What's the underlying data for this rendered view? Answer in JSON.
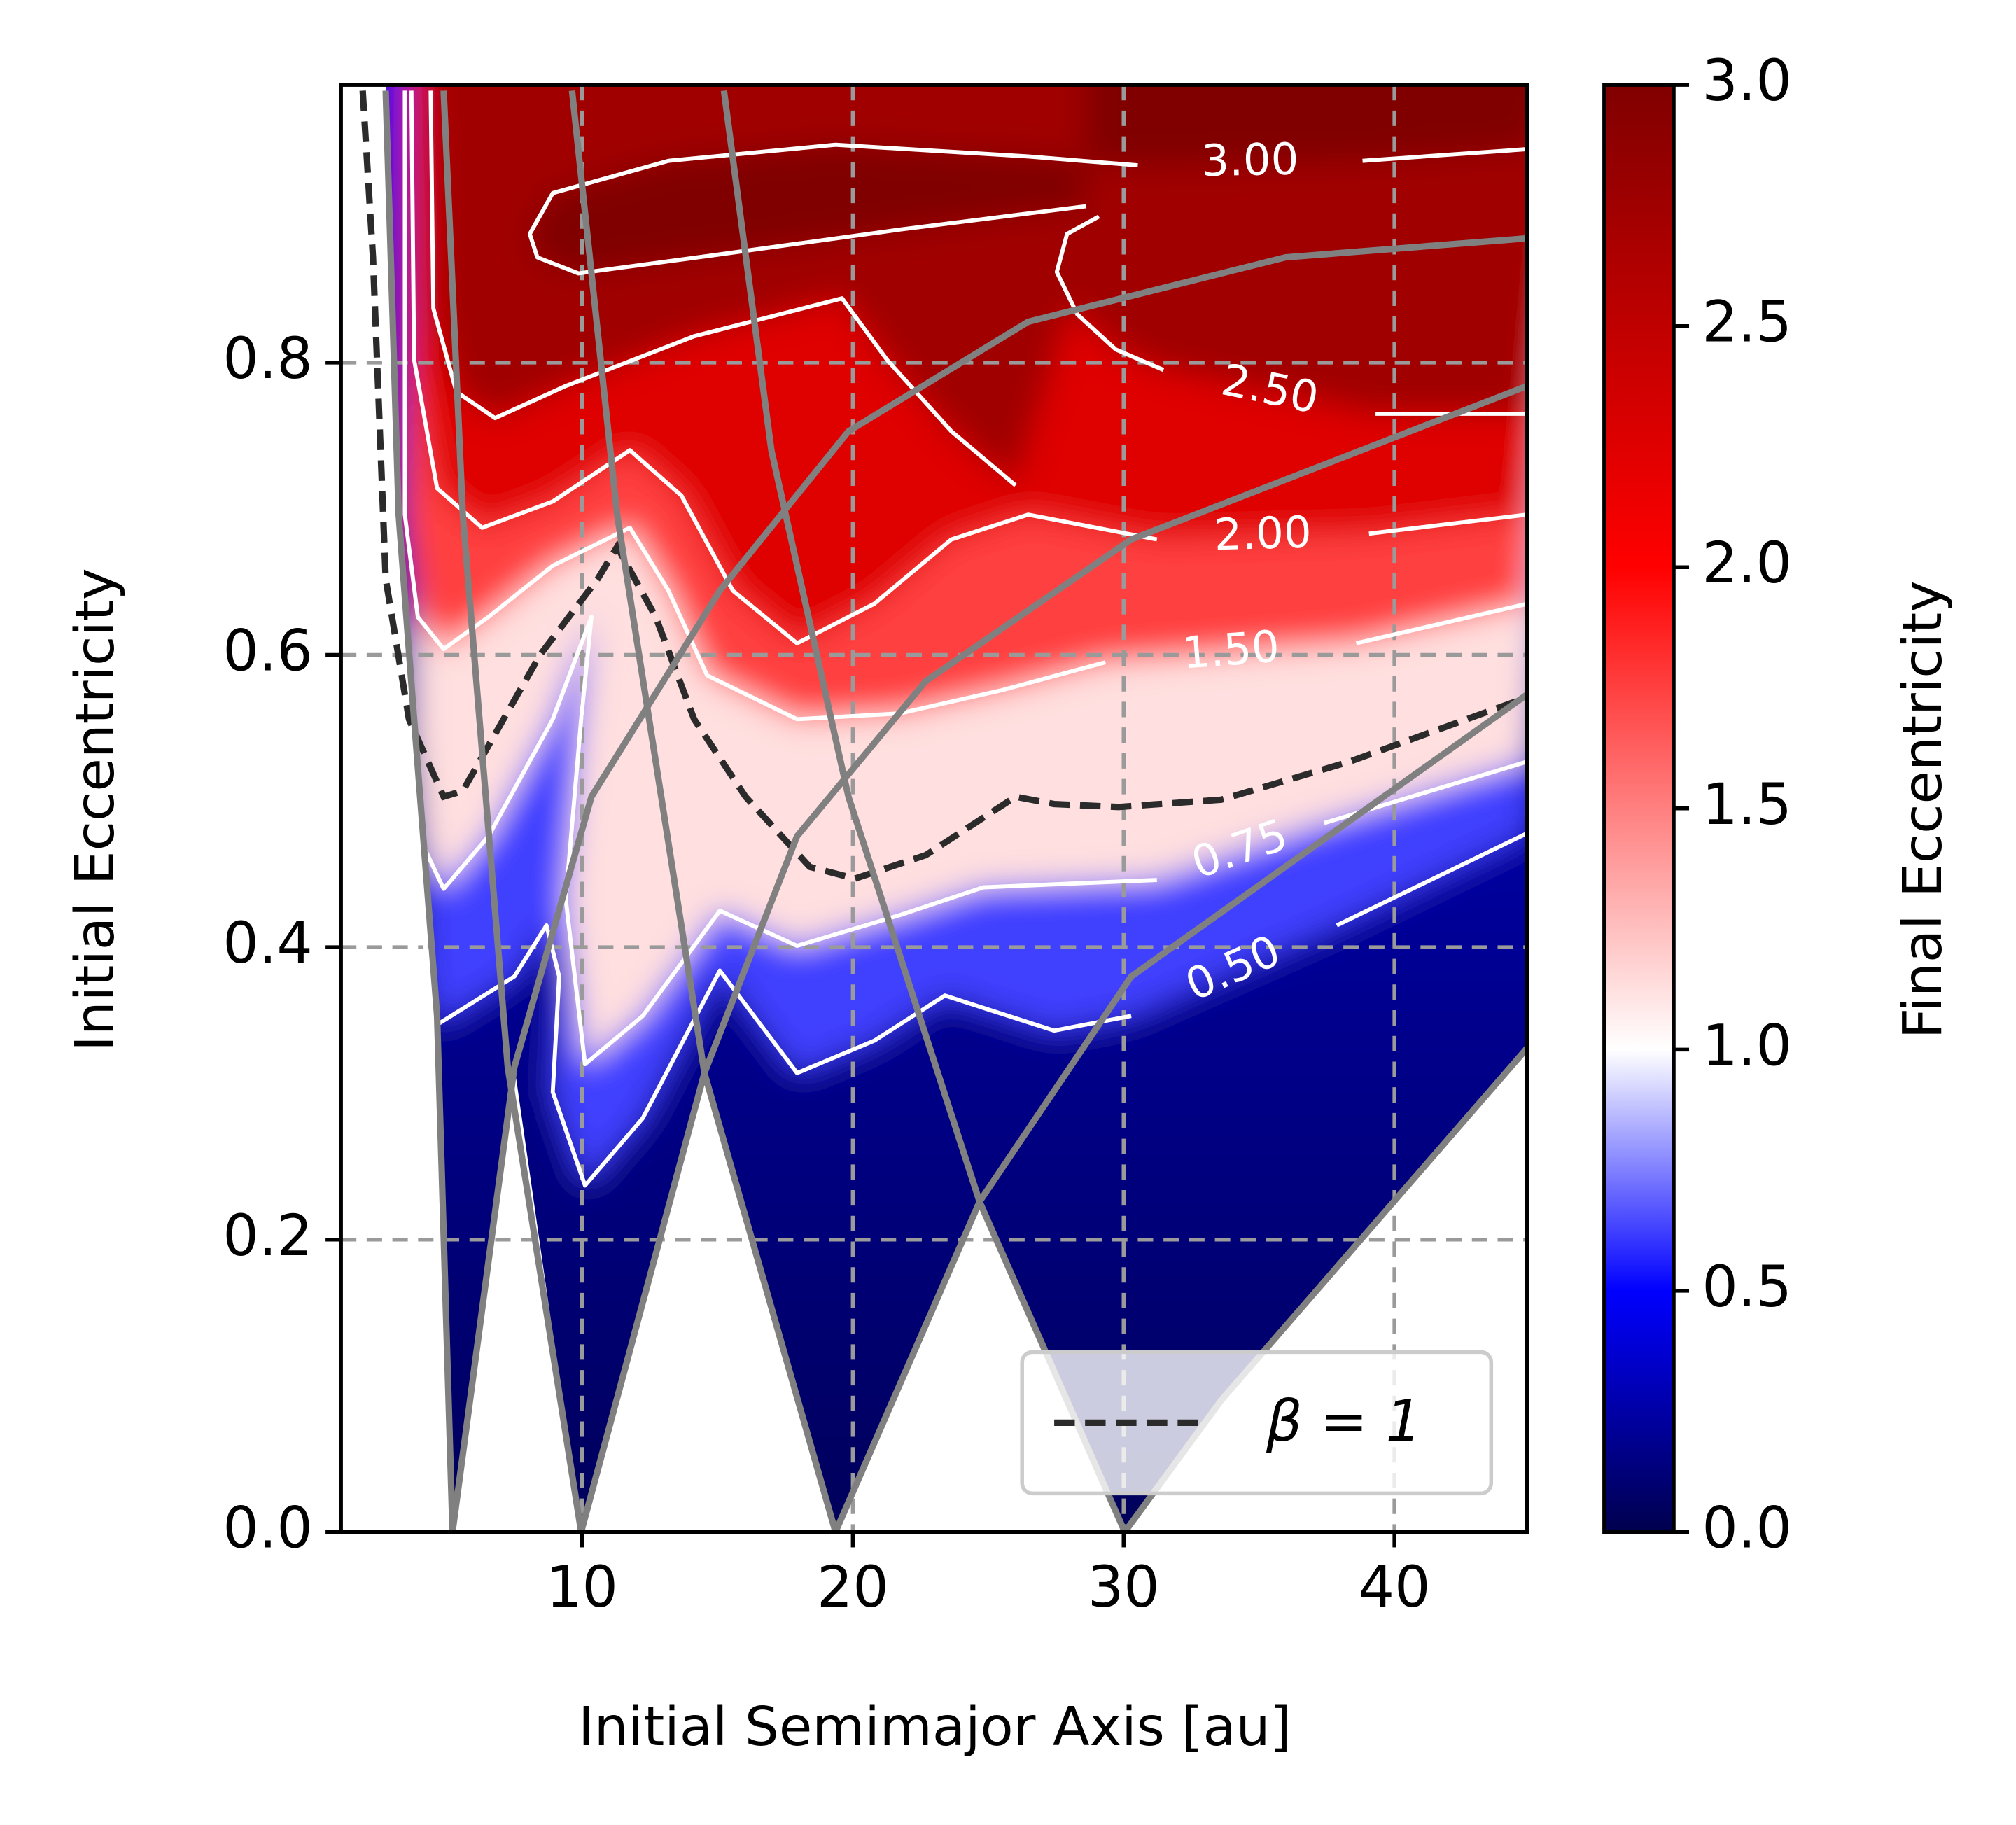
{
  "chart_data": {
    "type": "contour",
    "xlabel": "Initial Semimajor Axis [au]",
    "ylabel": "Initial Eccentricity",
    "xlim": [
      1.1,
      44.9
    ],
    "ylim": [
      0,
      0.99
    ],
    "xticks": [
      10,
      20,
      30,
      40
    ],
    "yticks": [
      {
        "value": 0,
        "label": "0.0"
      },
      0.2,
      0.4,
      0.6,
      0.8
    ],
    "grid": true,
    "legend": "lower right",
    "colorbar": {
      "label": "Final Eccentricity",
      "lim": [
        0,
        3
      ],
      "ticks": [
        {
          "value": 0,
          "label": "0.0"
        },
        0.5,
        {
          "value": 1,
          "label": "1.0"
        },
        1.5,
        {
          "value": 2,
          "label": "2.0"
        },
        2.5,
        {
          "value": 3,
          "label": "3.0"
        }
      ],
      "colormap": [
        [
          0,
          "#00004d"
        ],
        [
          0.5,
          "#0000ff"
        ],
        [
          1,
          "#ffffff"
        ],
        [
          2,
          "#ff0000"
        ],
        [
          3,
          "#800000"
        ]
      ]
    },
    "contours": [
      {
        "level": 0.5,
        "label": "0.50",
        "color": "#ffffff",
        "x": [
          3.94,
          4.27,
          4.65,
          7.5,
          8.69,
          9.16,
          8.92,
          10.11,
          12.24,
          15.09,
          17.94,
          20.79,
          23.4,
          27.43,
          30.28,
          null,
          37.87,
          44.9
        ],
        "y": [
          0.52,
          0.38,
          0.347,
          0.38,
          0.415,
          0.38,
          0.301,
          0.237,
          0.283,
          0.384,
          0.314,
          0.336,
          0.367,
          0.343,
          0.353,
          null,
          0.415,
          0.478
        ]
      },
      {
        "level": 0.75,
        "label": "0.75",
        "color": "#ffffff",
        "x": [
          3.8,
          4.18,
          4.89,
          6.55,
          8.92,
          10.35,
          9.97,
          9.4,
          10.11,
          12.24,
          15.09,
          17.94,
          21.74,
          24.82,
          31.23,
          null,
          37.4,
          44.9
        ],
        "y": [
          0.547,
          0.468,
          0.44,
          0.476,
          0.556,
          0.626,
          0.556,
          0.433,
          0.32,
          0.353,
          0.425,
          0.401,
          0.422,
          0.441,
          0.446,
          null,
          0.485,
          0.527
        ]
      },
      {
        "level": 1.5,
        "label": "1.50",
        "color": "#ffffff",
        "x": [
          3.46,
          3.46,
          3.94,
          4.89,
          6.55,
          8.92,
          11.77,
          13.19,
          14.62,
          17.94,
          21.74,
          25.53,
          29.33,
          null,
          38.59,
          44.9
        ],
        "y": [
          0.986,
          0.696,
          0.626,
          0.604,
          0.626,
          0.661,
          0.687,
          0.644,
          0.586,
          0.556,
          0.56,
          0.576,
          0.595,
          null,
          0.608,
          0.635
        ]
      },
      {
        "level": 2,
        "label": "2.00",
        "color": "#ffffff",
        "x": [
          3.7,
          3.8,
          4.65,
          6.31,
          8.92,
          11.77,
          13.67,
          15.57,
          17.94,
          20.79,
          23.64,
          26.48,
          31.23,
          null,
          39.06,
          44.9
        ],
        "y": [
          0.986,
          0.802,
          0.714,
          0.687,
          0.705,
          0.74,
          0.709,
          0.644,
          0.608,
          0.635,
          0.679,
          0.696,
          0.679,
          null,
          0.683,
          0.696
        ]
      },
      {
        "level": 2.5,
        "label": "2.50",
        "color": "#ffffff",
        "x": [
          4.41,
          4.51,
          5.36,
          6.79,
          9.4,
          14.14,
          19.6,
          21.26,
          23.64,
          26.01,
          null,
          29.09,
          27.91,
          27.53,
          28.29,
          29.71,
          31.47,
          null,
          39.3,
          44.9
        ],
        "y": [
          0.986,
          0.837,
          0.78,
          0.762,
          0.784,
          0.818,
          0.844,
          0.802,
          0.753,
          0.716,
          null,
          0.9,
          0.888,
          0.862,
          0.833,
          0.809,
          0.795,
          null,
          0.765,
          0.765
        ]
      },
      {
        "level": 3,
        "label": "3.00",
        "color": "#ffffff",
        "x": [
          28.62,
          21.74,
          15.09,
          9.87,
          8.35,
          8.07,
          8.92,
          13.19,
          19.36,
          26.48,
          30.52,
          null,
          38.82,
          44.9
        ],
        "y": [
          0.907,
          0.891,
          0.874,
          0.861,
          0.872,
          0.888,
          0.916,
          0.938,
          0.949,
          0.941,
          0.935,
          null,
          0.938,
          0.946
        ]
      }
    ],
    "series": [
      {
        "name": "β = 1",
        "color": "#2b2b2b",
        "dash": true,
        "x": [
          1.9,
          2.28,
          2.75,
          3.61,
          4.89,
          5.6,
          8.45,
          10.58,
          11.3,
          12.72,
          14.14,
          16.04,
          18.41,
          20.08,
          22.69,
          26.01,
          27.43,
          29.81,
          33.6,
          38.35,
          44.9
        ],
        "y": [
          0.986,
          0.872,
          0.652,
          0.556,
          0.503,
          0.507,
          0.6,
          0.652,
          0.674,
          0.626,
          0.556,
          0.503,
          0.455,
          0.447,
          0.463,
          0.503,
          0.498,
          0.496,
          0.501,
          0.527,
          0.571
        ]
      }
    ],
    "crossing_curves": [
      {
        "color": "#808080",
        "x": [
          2.75,
          3.23,
          3.8,
          4.65,
          5.22
        ],
        "y": [
          0.986,
          0.696,
          0.556,
          0.353,
          0
        ]
      },
      {
        "color": "#808080",
        "x": [
          4.89,
          5.6,
          7.26,
          9.97
        ],
        "y": [
          0.986,
          0.696,
          0.318,
          0
        ]
      },
      {
        "color": "#808080",
        "x": [
          9.63,
          11.3,
          14.52,
          19.36
        ],
        "y": [
          0.986,
          0.696,
          0.314,
          0
        ]
      },
      {
        "color": "#808080",
        "x": [
          15.24,
          16.99,
          19.84,
          24.68,
          30.04
        ],
        "y": [
          0.986,
          0.74,
          0.503,
          0.226,
          0
        ]
      },
      {
        "color": "#808080",
        "x": [
          5.22,
          7.5,
          10.35,
          15.09,
          19.84,
          26.48,
          35.98,
          44.9
        ],
        "y": [
          0,
          0.318,
          0.503,
          0.644,
          0.753,
          0.828,
          0.872,
          0.885
        ]
      },
      {
        "color": "#808080",
        "x": [
          9.97,
          14.52,
          17.94,
          22.69,
          30.28,
          44.9
        ],
        "y": [
          0,
          0.314,
          0.476,
          0.582,
          0.679,
          0.784
        ]
      },
      {
        "color": "#808080",
        "x": [
          19.36,
          24.68,
          30.28,
          44.9
        ],
        "y": [
          0,
          0.226,
          0.38,
          0.573
        ]
      },
      {
        "color": "#808080",
        "x": [
          30.04,
          33.6,
          44.9
        ],
        "y": [
          0,
          0.09,
          0.331
        ]
      }
    ]
  }
}
